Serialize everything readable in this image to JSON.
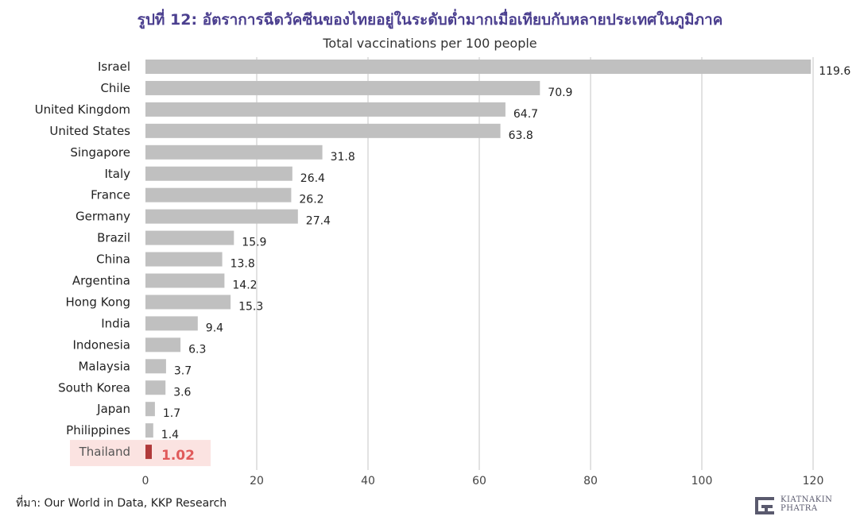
{
  "chart_data": {
    "type": "bar",
    "orientation": "horizontal",
    "title": "รูปที่ 12: อัตราการฉีดวัคซีนของไทยอยู่ในระดับต่ำมากเมื่อเทียบกับหลายประเทศในภูมิภาค",
    "subtitle": "Total vaccinations per 100 people",
    "categories": [
      "Israel",
      "Chile",
      "United Kingdom",
      "United States",
      "Singapore",
      "Italy",
      "France",
      "Germany",
      "Brazil",
      "China",
      "Argentina",
      "Hong Kong",
      "India",
      "Indonesia",
      "Malaysia",
      "South Korea",
      "Japan",
      "Philippines",
      "Thailand"
    ],
    "values": [
      119.6,
      70.9,
      64.7,
      63.8,
      31.8,
      26.4,
      26.2,
      27.4,
      15.9,
      13.8,
      14.2,
      15.3,
      9.4,
      6.3,
      3.7,
      3.6,
      1.7,
      1.4,
      1.02
    ],
    "value_labels": [
      "119.6",
      "70.9",
      "64.7",
      "63.8",
      "31.8",
      "26.4",
      "26.2",
      "27.4",
      "15.9",
      "13.8",
      "14.2",
      "15.3",
      "9.4",
      "6.3",
      "3.7",
      "3.6",
      "1.7",
      "1.4",
      "1.02"
    ],
    "highlight": "Thailand",
    "xlim": [
      0,
      120
    ],
    "xticks": [
      0,
      20,
      40,
      60,
      80,
      100,
      120
    ],
    "grid": "vertical",
    "colors": {
      "bar": "#c0c0c0",
      "highlight_bar": "#b03a3a",
      "highlight_label": "#e05a5a",
      "highlight_bg": "#fbe3e1",
      "grid": "#d9d9d9",
      "title": "#4b3f8f"
    }
  },
  "footer": {
    "source": "ที่มา: Our World in Data, KKP Research",
    "logo_line1": "KIATNAKIN",
    "logo_line2": "PHATRA"
  }
}
